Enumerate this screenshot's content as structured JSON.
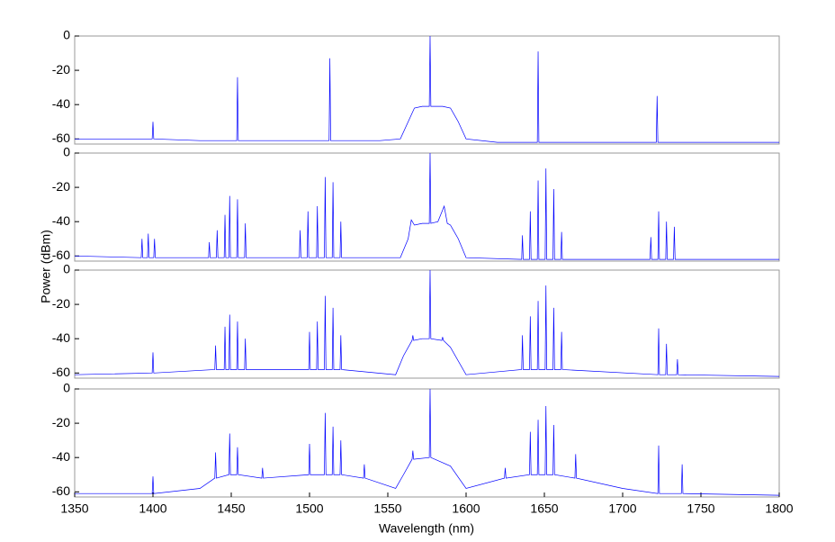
{
  "chart_data": [
    {
      "type": "line",
      "y_label": "Power (dBm)",
      "color": "#0000ff",
      "xlim": [
        1350,
        1800
      ],
      "ylim": [
        -63,
        0
      ],
      "yticks": [
        0,
        -20,
        -40,
        -60
      ],
      "x": [
        1350,
        1380,
        1399.5,
        1400,
        1400.5,
        1430,
        1453.5,
        1454,
        1454.5,
        1490,
        1512.5,
        1513,
        1513.5,
        1545,
        1558,
        1563,
        1567,
        1572,
        1576.5,
        1577,
        1577.5,
        1585,
        1590,
        1595,
        1600,
        1620,
        1645.5,
        1646,
        1646.5,
        1680,
        1721.5,
        1722,
        1722.5,
        1760,
        1800
      ],
      "values": [
        -60,
        -60,
        -60,
        -50,
        -60,
        -61,
        -61,
        -24,
        -61,
        -61,
        -61,
        -13,
        -61,
        -61,
        -60,
        -50,
        -42,
        -41,
        -41,
        0,
        -41,
        -41,
        -42,
        -50,
        -60,
        -62,
        -62,
        -9,
        -62,
        -62,
        -62,
        -35,
        -62,
        -62,
        -62
      ]
    },
    {
      "type": "line",
      "color": "#0000ff",
      "xlim": [
        1350,
        1800
      ],
      "ylim": [
        -63,
        0
      ],
      "yticks": [
        0,
        -20,
        -40,
        -60
      ],
      "x": [
        1350,
        1392.5,
        1393,
        1393.5,
        1396.5,
        1397,
        1397.5,
        1400.5,
        1401,
        1401.5,
        1435.5,
        1436,
        1436.5,
        1440.5,
        1441,
        1441.5,
        1445.5,
        1446,
        1446.5,
        1448.5,
        1449,
        1449.5,
        1453.5,
        1454,
        1454.5,
        1458.5,
        1459,
        1459.5,
        1493.5,
        1494,
        1494.5,
        1498.5,
        1499,
        1499.5,
        1504.5,
        1505,
        1505.5,
        1509.5,
        1510,
        1510.5,
        1514.5,
        1515,
        1515.5,
        1519.5,
        1520,
        1520.5,
        1558,
        1563,
        1565,
        1567,
        1572,
        1576.5,
        1577,
        1577.5,
        1582,
        1586,
        1588,
        1590,
        1595,
        1600,
        1635.5,
        1636,
        1636.5,
        1640.5,
        1641,
        1641.5,
        1645.5,
        1646,
        1646.5,
        1650.5,
        1651,
        1651.5,
        1655.5,
        1656,
        1656.5,
        1660.5,
        1661,
        1661.5,
        1717.5,
        1718,
        1718.5,
        1722.5,
        1723,
        1723.5,
        1727.5,
        1728,
        1728.5,
        1732.5,
        1733,
        1733.5,
        1800
      ],
      "values": [
        -60,
        -61,
        -50,
        -61,
        -61,
        -47,
        -61,
        -61,
        -50,
        -61,
        -61,
        -52,
        -61,
        -61,
        -45,
        -61,
        -61,
        -36,
        -61,
        -61,
        -25,
        -61,
        -61,
        -27,
        -61,
        -61,
        -41,
        -61,
        -61,
        -45,
        -61,
        -61,
        -34,
        -61,
        -61,
        -31,
        -61,
        -61,
        -14,
        -61,
        -61,
        -17,
        -61,
        -61,
        -40,
        -61,
        -61,
        -50,
        -39,
        -42,
        -41,
        -41,
        0,
        -41,
        -40,
        -31,
        -41,
        -42,
        -50,
        -61,
        -62,
        -48,
        -62,
        -62,
        -34,
        -62,
        -62,
        -16,
        -62,
        -62,
        -9,
        -62,
        -62,
        -21,
        -62,
        -62,
        -46,
        -62,
        -62,
        -49,
        -62,
        -62,
        -34,
        -62,
        -62,
        -40,
        -62,
        -62,
        -43,
        -62,
        -62
      ]
    },
    {
      "type": "line",
      "color": "#0000ff",
      "xlim": [
        1350,
        1800
      ],
      "ylim": [
        -63,
        0
      ],
      "yticks": [
        0,
        -20,
        -40,
        -60
      ],
      "x": [
        1350,
        1399.5,
        1400,
        1400.5,
        1439.5,
        1440,
        1440.5,
        1445.5,
        1446,
        1446.5,
        1448.5,
        1449,
        1449.5,
        1453.5,
        1454,
        1454.5,
        1458.5,
        1459,
        1459.5,
        1499.5,
        1500,
        1500.5,
        1504.5,
        1505,
        1505.5,
        1509.5,
        1510,
        1510.5,
        1514.5,
        1515,
        1515.5,
        1519.5,
        1520,
        1520.5,
        1555,
        1560,
        1565.5,
        1566,
        1566.5,
        1572,
        1576.5,
        1577,
        1577.5,
        1584.5,
        1585,
        1585.5,
        1590,
        1600,
        1635.5,
        1636,
        1636.5,
        1640.5,
        1641,
        1641.5,
        1645.5,
        1646,
        1646.5,
        1650.5,
        1651,
        1651.5,
        1655.5,
        1656,
        1656.5,
        1660.5,
        1661,
        1661.5,
        1722.5,
        1723,
        1723.5,
        1727.5,
        1728,
        1728.5,
        1734.5,
        1735,
        1735.5,
        1800
      ],
      "values": [
        -61,
        -60,
        -48,
        -60,
        -58,
        -44,
        -58,
        -58,
        -33,
        -58,
        -58,
        -26,
        -58,
        -58,
        -30,
        -58,
        -58,
        -40,
        -58,
        -58,
        -36,
        -58,
        -58,
        -30,
        -58,
        -58,
        -15,
        -58,
        -58,
        -22,
        -58,
        -58,
        -38,
        -58,
        -61,
        -50,
        -41,
        -38,
        -41,
        -40,
        -40,
        0,
        -40,
        -41,
        -39,
        -41,
        -45,
        -61,
        -58,
        -38,
        -58,
        -58,
        -27,
        -58,
        -58,
        -18,
        -58,
        -58,
        -9,
        -58,
        -58,
        -22,
        -58,
        -58,
        -36,
        -58,
        -61,
        -34,
        -61,
        -61,
        -43,
        -61,
        -61,
        -52,
        -61,
        -62
      ]
    },
    {
      "type": "line",
      "x_label": "Wavelength (nm)",
      "color": "#0000ff",
      "xlim": [
        1350,
        1800
      ],
      "xticks": [
        1350,
        1400,
        1450,
        1500,
        1550,
        1600,
        1650,
        1700,
        1750,
        1800
      ],
      "ylim": [
        -63,
        0
      ],
      "yticks": [
        0,
        -20,
        -40,
        -60
      ],
      "x": [
        1350,
        1399.5,
        1400,
        1400.5,
        1430,
        1439.5,
        1440,
        1440.5,
        1448.5,
        1449,
        1449.5,
        1453.5,
        1454,
        1454.5,
        1469.5,
        1470,
        1470.5,
        1499.5,
        1500,
        1500.5,
        1509.5,
        1510,
        1510.5,
        1514.5,
        1515,
        1515.5,
        1519.5,
        1520,
        1520.5,
        1534.5,
        1535,
        1535.5,
        1555,
        1560,
        1565.5,
        1566,
        1566.5,
        1576.5,
        1577,
        1577.5,
        1590,
        1600,
        1624.5,
        1625,
        1625.5,
        1640.5,
        1641,
        1641.5,
        1645.5,
        1646,
        1646.5,
        1650.5,
        1651,
        1651.5,
        1655.5,
        1656,
        1656.5,
        1669.5,
        1670,
        1670.5,
        1700,
        1722.5,
        1723,
        1723.5,
        1737.5,
        1738,
        1738.5,
        1800
      ],
      "values": [
        -61,
        -61,
        -51,
        -61,
        -58,
        -52,
        -37,
        -52,
        -50,
        -26,
        -50,
        -50,
        -34,
        -50,
        -52,
        -46,
        -52,
        -50,
        -32,
        -50,
        -50,
        -14,
        -50,
        -50,
        -22,
        -50,
        -50,
        -30,
        -50,
        -52,
        -44,
        -52,
        -58,
        -50,
        -41,
        -36,
        -41,
        -40,
        0,
        -40,
        -45,
        -58,
        -52,
        -46,
        -52,
        -50,
        -25,
        -50,
        -50,
        -18,
        -50,
        -50,
        -10,
        -50,
        -50,
        -21,
        -50,
        -52,
        -38,
        -52,
        -58,
        -61,
        -33,
        -61,
        -61,
        -44,
        -61,
        -62
      ]
    }
  ]
}
